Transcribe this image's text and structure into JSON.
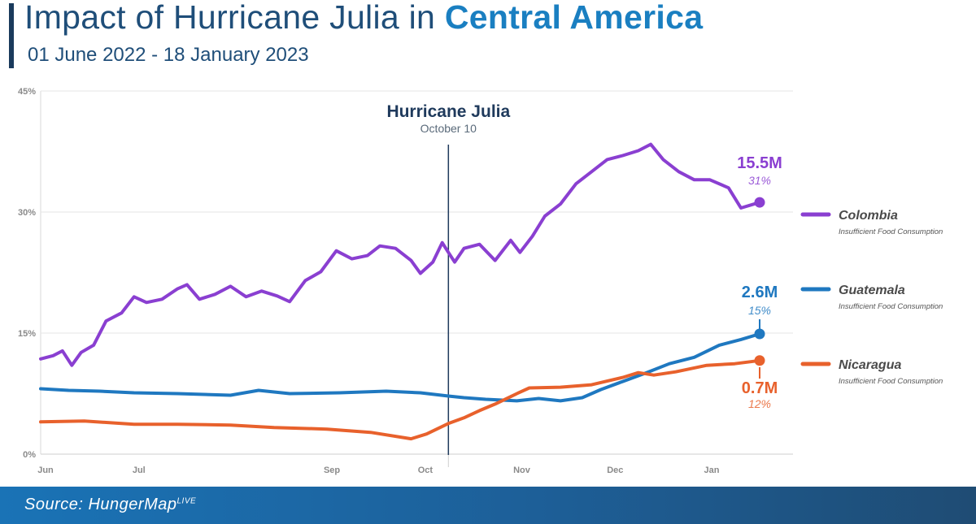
{
  "header": {
    "title_main": "Impact of Hurricane Julia in ",
    "title_highlight": "Central America",
    "subtitle": "01 June 2022 - 18 January 2023"
  },
  "footer": {
    "source_prefix": "Source: HungerMap",
    "source_sup": "LIVE"
  },
  "colors": {
    "title": "#1f4e79",
    "highlight": "#1a7fc1",
    "Colombia": "#8a3fd1",
    "Guatemala": "#1f78c0",
    "Nicaragua": "#e8612c",
    "event_line": "#1f3a5c"
  },
  "chart_data": {
    "type": "line",
    "title": "Impact of Hurricane Julia in Central America",
    "subtitle": "01 June 2022 - 18 January 2023",
    "ylim": [
      0,
      45
    ],
    "y_ticks": [
      "0%",
      "15%",
      "30%",
      "45%"
    ],
    "x_ticks": [
      "Jun",
      "Jul",
      "Sep",
      "Oct",
      "Nov",
      "Dec",
      "Jan"
    ],
    "grid": "horizontal",
    "legend_position": "right",
    "event": {
      "label": "Hurricane Julia",
      "date_label": "October 10",
      "date": "2022-10-10"
    },
    "series": [
      {
        "name": "Colombia",
        "sublabel": "Insufficient Food Consumption",
        "end_value": "15.5M",
        "end_pct": "31%",
        "points": [
          [
            "2022-06-01",
            11.8
          ],
          [
            "2022-06-05",
            12.2
          ],
          [
            "2022-06-08",
            12.8
          ],
          [
            "2022-06-11",
            11.0
          ],
          [
            "2022-06-14",
            12.6
          ],
          [
            "2022-06-18",
            13.5
          ],
          [
            "2022-06-22",
            16.5
          ],
          [
            "2022-06-27",
            17.5
          ],
          [
            "2022-07-01",
            19.5
          ],
          [
            "2022-07-05",
            18.8
          ],
          [
            "2022-07-10",
            19.2
          ],
          [
            "2022-07-15",
            20.5
          ],
          [
            "2022-07-18",
            21.0
          ],
          [
            "2022-07-22",
            19.2
          ],
          [
            "2022-07-27",
            19.8
          ],
          [
            "2022-08-01",
            20.8
          ],
          [
            "2022-08-06",
            19.5
          ],
          [
            "2022-08-11",
            20.2
          ],
          [
            "2022-08-16",
            19.6
          ],
          [
            "2022-08-20",
            18.9
          ],
          [
            "2022-08-25",
            21.5
          ],
          [
            "2022-08-30",
            22.6
          ],
          [
            "2022-09-04",
            25.2
          ],
          [
            "2022-09-09",
            24.2
          ],
          [
            "2022-09-14",
            24.6
          ],
          [
            "2022-09-18",
            25.8
          ],
          [
            "2022-09-23",
            25.5
          ],
          [
            "2022-09-28",
            24.0
          ],
          [
            "2022-10-01",
            22.4
          ],
          [
            "2022-10-05",
            23.8
          ],
          [
            "2022-10-08",
            26.2
          ],
          [
            "2022-10-10",
            25.0
          ],
          [
            "2022-10-12",
            23.8
          ],
          [
            "2022-10-15",
            25.5
          ],
          [
            "2022-10-20",
            26.0
          ],
          [
            "2022-10-25",
            24.0
          ],
          [
            "2022-10-30",
            26.5
          ],
          [
            "2022-11-02",
            25.0
          ],
          [
            "2022-11-06",
            27.0
          ],
          [
            "2022-11-10",
            29.5
          ],
          [
            "2022-11-15",
            31.0
          ],
          [
            "2022-11-20",
            33.5
          ],
          [
            "2022-11-25",
            35.0
          ],
          [
            "2022-11-30",
            36.5
          ],
          [
            "2022-12-05",
            37.0
          ],
          [
            "2022-12-10",
            37.6
          ],
          [
            "2022-12-14",
            38.4
          ],
          [
            "2022-12-18",
            36.5
          ],
          [
            "2022-12-23",
            35.0
          ],
          [
            "2022-12-28",
            34.0
          ],
          [
            "2023-01-02",
            34.0
          ],
          [
            "2023-01-08",
            33.0
          ],
          [
            "2023-01-12",
            30.5
          ],
          [
            "2023-01-18",
            31.2
          ]
        ]
      },
      {
        "name": "Guatemala",
        "sublabel": "Insufficient Food Consumption",
        "end_value": "2.6M",
        "end_pct": "15%",
        "points": [
          [
            "2022-06-01",
            8.1
          ],
          [
            "2022-06-10",
            7.9
          ],
          [
            "2022-06-20",
            7.8
          ],
          [
            "2022-07-01",
            7.6
          ],
          [
            "2022-07-15",
            7.5
          ],
          [
            "2022-08-01",
            7.3
          ],
          [
            "2022-08-10",
            7.9
          ],
          [
            "2022-08-20",
            7.5
          ],
          [
            "2022-09-05",
            7.6
          ],
          [
            "2022-09-20",
            7.8
          ],
          [
            "2022-10-01",
            7.6
          ],
          [
            "2022-10-10",
            7.2
          ],
          [
            "2022-10-15",
            7.0
          ],
          [
            "2022-10-22",
            6.8
          ],
          [
            "2022-11-01",
            6.6
          ],
          [
            "2022-11-08",
            6.9
          ],
          [
            "2022-11-15",
            6.6
          ],
          [
            "2022-11-22",
            7.0
          ],
          [
            "2022-11-28",
            8.0
          ],
          [
            "2022-12-05",
            9.0
          ],
          [
            "2022-12-12",
            10.0
          ],
          [
            "2022-12-20",
            11.2
          ],
          [
            "2022-12-28",
            12.0
          ],
          [
            "2023-01-05",
            13.5
          ],
          [
            "2023-01-12",
            14.2
          ],
          [
            "2023-01-18",
            14.9
          ]
        ]
      },
      {
        "name": "Nicaragua",
        "sublabel": "Insufficient Food Consumption",
        "end_value": "0.7M",
        "end_pct": "12%",
        "points": [
          [
            "2022-06-01",
            4.0
          ],
          [
            "2022-06-15",
            4.1
          ],
          [
            "2022-07-01",
            3.7
          ],
          [
            "2022-07-15",
            3.7
          ],
          [
            "2022-08-01",
            3.6
          ],
          [
            "2022-08-15",
            3.3
          ],
          [
            "2022-09-01",
            3.1
          ],
          [
            "2022-09-15",
            2.7
          ],
          [
            "2022-09-28",
            1.9
          ],
          [
            "2022-10-03",
            2.5
          ],
          [
            "2022-10-10",
            3.8
          ],
          [
            "2022-10-15",
            4.5
          ],
          [
            "2022-10-20",
            5.4
          ],
          [
            "2022-10-25",
            6.2
          ],
          [
            "2022-11-01",
            7.5
          ],
          [
            "2022-11-05",
            8.2
          ],
          [
            "2022-11-15",
            8.3
          ],
          [
            "2022-11-25",
            8.6
          ],
          [
            "2022-12-05",
            9.5
          ],
          [
            "2022-12-10",
            10.1
          ],
          [
            "2022-12-15",
            9.8
          ],
          [
            "2022-12-22",
            10.2
          ],
          [
            "2023-01-01",
            11.0
          ],
          [
            "2023-01-10",
            11.2
          ],
          [
            "2023-01-18",
            11.6
          ]
        ]
      }
    ]
  }
}
